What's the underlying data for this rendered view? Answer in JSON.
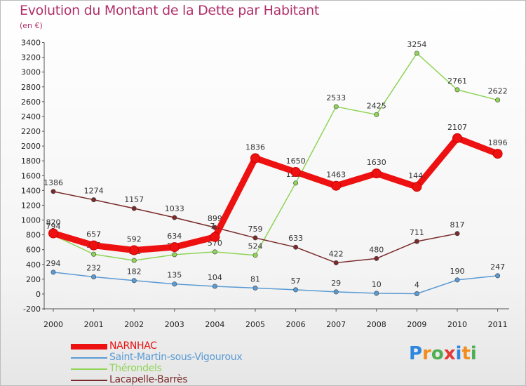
{
  "header": {
    "title": "Evolution du Montant de la Dette par Habitant",
    "subtitle": "(en €)"
  },
  "logo": {
    "text": "Proxiti"
  },
  "chart_data": {
    "type": "line",
    "categories": [
      "2000",
      "2001",
      "2002",
      "2003",
      "2004",
      "2005",
      "2006",
      "2007",
      "2008",
      "2009",
      "2010",
      "2011"
    ],
    "ylim": [
      -200,
      3400
    ],
    "yticks": [
      -200,
      0,
      200,
      400,
      600,
      800,
      1000,
      1200,
      1400,
      1600,
      1800,
      2000,
      2200,
      2400,
      2600,
      2800,
      3000,
      3200,
      3400
    ],
    "grid": false,
    "legend_position": "bottom-left",
    "series": [
      {
        "name": "NARNHAC",
        "color": "#ee1111",
        "emphasis": true,
        "values": [
          820,
          657,
          592,
          634,
          770,
          1836,
          1650,
          1463,
          1630,
          1449,
          2107,
          1896
        ],
        "labels": [
          "820",
          "657",
          "592",
          "634",
          "7..",
          "1836",
          "1650",
          "1463",
          "1630",
          "144.",
          "2107",
          "1896"
        ]
      },
      {
        "name": "Saint-Martin-sous-Vigouroux",
        "color": "#5a9bd4",
        "values": [
          294,
          232,
          182,
          135,
          104,
          81,
          57,
          29,
          10,
          4,
          190,
          247
        ],
        "labels": [
          "294",
          "232",
          "182",
          "135",
          "104",
          "81",
          "57",
          "29",
          "10",
          "4",
          "190",
          "247"
        ]
      },
      {
        "name": "Thérondels",
        "color": "#8ed456",
        "values": [
          794,
          538,
          453,
          532,
          570,
          524,
          1500,
          2533,
          2425,
          3254,
          2761,
          2622
        ],
        "labels": [
          "794",
          "538",
          "453",
          "532",
          "570",
          "524",
          "1500",
          "2533",
          "2425",
          "3254",
          "2761",
          "2622"
        ]
      },
      {
        "name": "Lacapelle-Barrès",
        "color": "#7a2a2a",
        "values": [
          1386,
          1274,
          1157,
          1033,
          899,
          759,
          633,
          422,
          480,
          711,
          817,
          null
        ],
        "labels": [
          "1386",
          "1274",
          "1157",
          "1033",
          "899",
          "759",
          "633",
          "422",
          "480",
          "711",
          "817",
          ""
        ]
      }
    ]
  }
}
